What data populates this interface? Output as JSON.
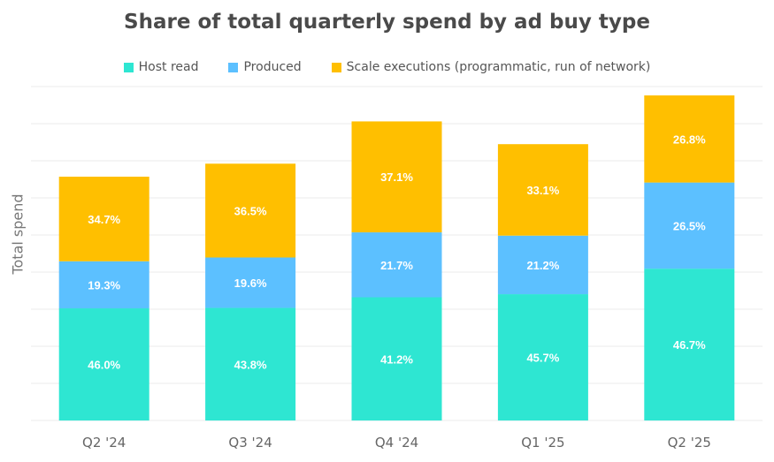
{
  "chart_data": {
    "type": "bar",
    "stacked": true,
    "title": "Share of total quarterly spend by ad buy type",
    "ylabel": "Total spend",
    "xlabel": "",
    "categories": [
      "Q2 '24",
      "Q3 '24",
      "Q4 '24",
      "Q1 '25",
      "Q2 '25"
    ],
    "series": [
      {
        "name": "Host read",
        "color": "#2ee6d2",
        "values": [
          46.0,
          43.8,
          41.2,
          45.7,
          46.7
        ],
        "labels": [
          "46.0%",
          "43.8%",
          "41.2%",
          "45.7%",
          "46.7%"
        ]
      },
      {
        "name": "Produced",
        "color": "#5cc0ff",
        "values": [
          19.3,
          19.6,
          21.7,
          21.2,
          26.5
        ],
        "labels": [
          "19.3%",
          "19.6%",
          "21.7%",
          "21.2%",
          "26.5%"
        ]
      },
      {
        "name": "Scale executions (programmatic, run of network)",
        "color": "#ffbf00",
        "values": [
          34.7,
          36.5,
          37.1,
          33.1,
          26.8
        ],
        "labels": [
          "34.7%",
          "36.5%",
          "37.1%",
          "33.1%",
          "26.8%"
        ]
      }
    ],
    "relative_total_spend": [
      0.75,
      0.79,
      0.92,
      0.85,
      1.0
    ],
    "legend_position": "top",
    "grid": true
  }
}
